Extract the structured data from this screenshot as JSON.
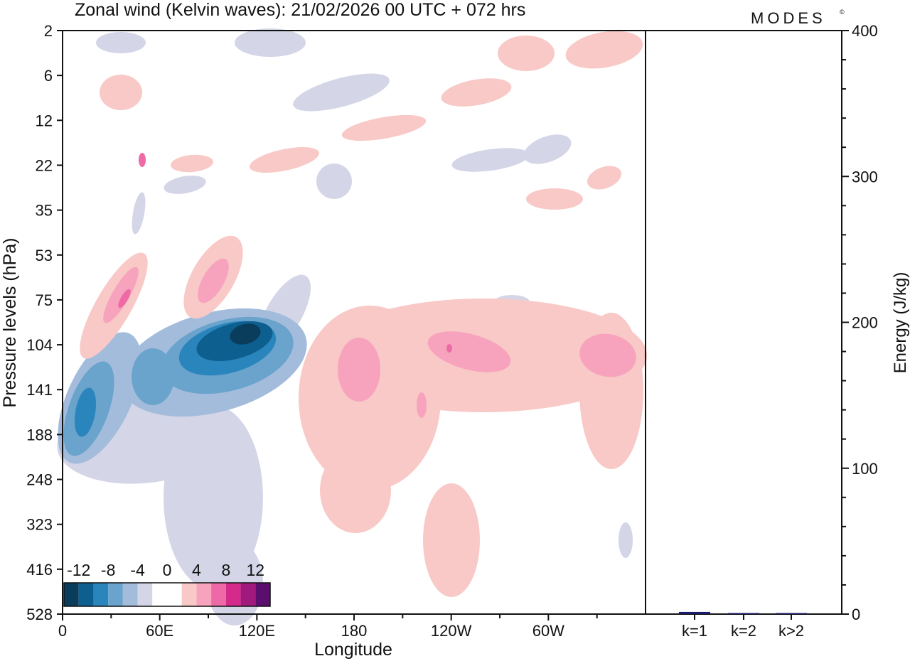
{
  "title": "Zonal wind (Kelvin waves):  21/02/2026  00 UTC  + 072 hrs",
  "brand": "MODES",
  "brand_mark": "©",
  "colors": {
    "neg": [
      "#0a3d5c",
      "#0d5f8f",
      "#2b85bd",
      "#6aa3cc",
      "#a4bcdc",
      "#d4d6e8"
    ],
    "pos": [
      "#f8c9c6",
      "#f7a3bd",
      "#ee6aa7",
      "#d32a8c",
      "#a01a7d",
      "#5a0f6e"
    ],
    "energy_bar": "#1a1a6e"
  },
  "chart_data": [
    {
      "type": "heatmap",
      "title": "Zonal wind (Kelvin waves)",
      "xlabel": "Longitude",
      "ylabel": "Pressure levels (hPa)",
      "x_ticks": [
        "0",
        "60E",
        "120E",
        "180",
        "120W",
        "60W"
      ],
      "x_tick_values": [
        0,
        60,
        120,
        180,
        240,
        300
      ],
      "xlim": [
        0,
        360
      ],
      "y_ticks": [
        "2",
        "6",
        "12",
        "22",
        "35",
        "53",
        "75",
        "104",
        "141",
        "188",
        "248",
        "323",
        "416",
        "528"
      ],
      "colorbar": {
        "labels": [
          "-12",
          "-8",
          "-4",
          "0",
          "4",
          "8",
          "12"
        ],
        "levels": [
          -14,
          -12,
          -10,
          -8,
          -6,
          -4,
          -2,
          2,
          4,
          6,
          8,
          10,
          12,
          14
        ]
      },
      "features": [
        {
          "sign": "neg",
          "lon": 110,
          "level": "104",
          "value": -14
        },
        {
          "sign": "neg",
          "lon": 15,
          "level": "188",
          "value": -11
        },
        {
          "sign": "neg",
          "lon": 60,
          "level": "141",
          "value": -8
        },
        {
          "sign": "pos",
          "lon": 35,
          "level": "75",
          "value": 8
        },
        {
          "sign": "pos",
          "lon": 95,
          "level": "75",
          "value": 6
        },
        {
          "sign": "pos",
          "lon": 180,
          "level": "141",
          "value": 6
        },
        {
          "sign": "pos",
          "lon": 240,
          "level": "104",
          "value": 8
        },
        {
          "sign": "pos",
          "lon": 335,
          "level": "141",
          "value": 6
        },
        {
          "sign": "pos",
          "lon": 230,
          "level": "416",
          "value": 4
        }
      ]
    },
    {
      "type": "bar",
      "ylabel": "Energy (J/kg)",
      "categories": [
        "k=1",
        "k=2",
        "k>2"
      ],
      "values": [
        1.5,
        0.3,
        0.5
      ],
      "ylim": [
        0,
        400
      ],
      "y_ticks": [
        "0",
        "100",
        "200",
        "300",
        "400"
      ]
    }
  ]
}
